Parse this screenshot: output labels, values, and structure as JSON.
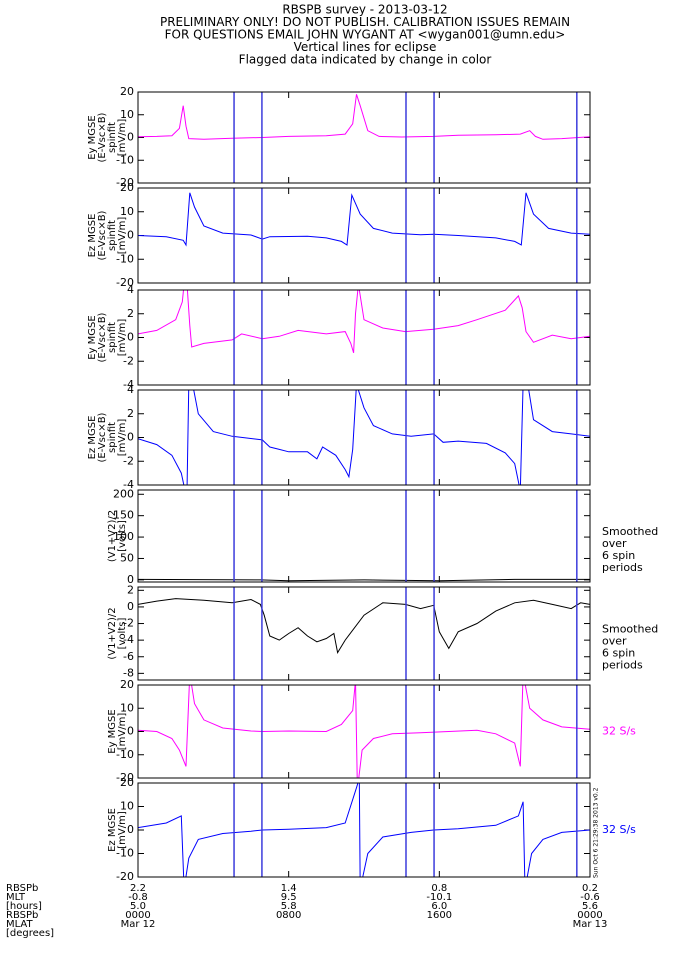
{
  "header": [
    "RBSPB survey - 2013-03-12",
    "PRELIMINARY ONLY! DO NOT PUBLISH. CALIBRATION ISSUES REMAIN",
    "FOR QUESTIONS EMAIL JOHN WYGANT AT <wygan001@umn.edu>",
    "Vertical lines for eclipse",
    "Flagged data indicated by change in color"
  ],
  "eclipse": {
    "x": [
      5.1,
      6.58,
      14.23,
      15.72,
      23.3
    ],
    "color": "#3c3cdc"
  },
  "x_axis": {
    "xlim": [
      0,
      24
    ],
    "row_labels": [
      "RBSPb",
      "MLT",
      "[hours]",
      "RBSPb",
      "MLAT",
      "[degrees]"
    ],
    "ticks": [
      {
        "value": 0,
        "rows": [
          "2.2",
          "-0.8",
          "5.0",
          "0000",
          "Mar 12"
        ]
      },
      {
        "value": 8,
        "rows": [
          "1.4",
          "9.5",
          "5.8",
          "0800"
        ]
      },
      {
        "value": 16,
        "rows": [
          "0.8",
          "-10.1",
          "6.0",
          "1600"
        ]
      },
      {
        "value": 24,
        "rows": [
          "0.2",
          "-0.6",
          "5.6",
          "0000",
          "Mar 13"
        ]
      }
    ]
  },
  "footnote": "Sun Oct  6 21:29:38 2013 v0.2",
  "chart_data": [
    {
      "type": "line",
      "ylabel": [
        "Ey MGSE",
        "(E-Vsc×B)",
        "spinfit",
        "[mV/m]"
      ],
      "ylim": [
        -20,
        20
      ],
      "yticks": [
        -20,
        -10,
        0,
        10,
        20
      ],
      "x": [
        0,
        1,
        1.8,
        2.2,
        2.4,
        2.55,
        2.7,
        3.5,
        5,
        6.6,
        8,
        10,
        11,
        11.4,
        11.6,
        11.8,
        12.2,
        12.8,
        14,
        15.7,
        17,
        19,
        20.3,
        20.8,
        21.1,
        21.5,
        22.5,
        24
      ],
      "series": [
        {
          "color": "#ff00ff",
          "values": [
            0.3,
            0.5,
            0.8,
            4,
            14,
            5,
            -0.5,
            -0.8,
            -0.3,
            0,
            0.5,
            0.8,
            1.5,
            6,
            19,
            14,
            3,
            0.5,
            0.2,
            0.5,
            1,
            1.2,
            1.5,
            3,
            0.5,
            -0.8,
            -0.5,
            0.3
          ]
        }
      ]
    },
    {
      "type": "line",
      "ylabel": [
        "Ez MGSE",
        "(E-Vsc×B)",
        "spinfit",
        "[mV/m]"
      ],
      "ylim": [
        -20,
        20
      ],
      "yticks": [
        -20,
        -10,
        0,
        10,
        20
      ],
      "x": [
        0,
        1.5,
        2.4,
        2.55,
        2.75,
        3,
        3.5,
        4.5,
        6,
        6.6,
        7,
        9,
        10,
        10.8,
        11.1,
        11.35,
        11.8,
        12.5,
        13.5,
        15,
        15.7,
        17,
        19,
        20,
        20.35,
        20.6,
        21,
        21.8,
        23,
        24
      ],
      "series": [
        {
          "color": "#0000ff",
          "values": [
            0,
            -0.5,
            -2,
            -4,
            18,
            12,
            4,
            1,
            0.2,
            -1.5,
            -0.5,
            -0.3,
            -1,
            -2.5,
            -4,
            17,
            9,
            3,
            1,
            0.3,
            0.5,
            0,
            -1,
            -2.5,
            -4,
            18,
            9,
            3,
            1,
            0.5
          ]
        }
      ]
    },
    {
      "type": "line",
      "ylabel": [
        "Ey MGSE",
        "(E-Vsc×B)",
        "spinfit",
        "[mV/m]"
      ],
      "ylim": [
        -4,
        4
      ],
      "yticks": [
        -4,
        -2,
        0,
        2,
        4
      ],
      "x": [
        0,
        1,
        2,
        2.35,
        2.45,
        2.6,
        2.75,
        2.85,
        3.5,
        5,
        5.5,
        6.6,
        7.5,
        8.5,
        10,
        11,
        11.3,
        11.45,
        11.55,
        11.7,
        12,
        13,
        14.2,
        15.7,
        17,
        18,
        19.5,
        20.2,
        20.4,
        20.6,
        21,
        22,
        23,
        24
      ],
      "series": [
        {
          "color": "#ff00ff",
          "values": [
            0.3,
            0.6,
            1.5,
            3,
            4.5,
            4.5,
            1,
            -0.8,
            -0.5,
            -0.2,
            0.3,
            -0.1,
            0.1,
            0.6,
            0.3,
            0.5,
            -0.5,
            -1.3,
            2,
            4.5,
            1.5,
            0.8,
            0.5,
            0.7,
            1,
            1.5,
            2.3,
            3.5,
            2.5,
            0.5,
            -0.4,
            0.2,
            -0.1,
            0.1
          ]
        }
      ]
    },
    {
      "type": "line",
      "ylabel": [
        "Ez MGSE",
        "(E-Vsc×B)",
        "spinfit",
        "[mV/m]"
      ],
      "ylim": [
        -4,
        4
      ],
      "yticks": [
        -4,
        -2,
        0,
        2,
        4
      ],
      "x": [
        0,
        1,
        1.8,
        2.3,
        2.5,
        2.6,
        2.7,
        2.9,
        3.2,
        4,
        5,
        6.6,
        7,
        7.5,
        8,
        9,
        9.5,
        9.8,
        10.5,
        11,
        11.2,
        11.4,
        11.6,
        12,
        12.5,
        13.5,
        14.5,
        15.7,
        16.2,
        17,
        18.5,
        19.5,
        20,
        20.3,
        20.45,
        20.7,
        21,
        22,
        23,
        24
      ],
      "series": [
        {
          "color": "#0000ff",
          "values": [
            -0.1,
            -0.6,
            -1.5,
            -3,
            -4.5,
            -4.5,
            4.5,
            4.5,
            2,
            0.5,
            0.1,
            -0.2,
            -0.8,
            -1,
            -1.2,
            -1.2,
            -1.8,
            -0.8,
            -1.5,
            -2.7,
            -3.3,
            -1,
            4.5,
            2.5,
            1,
            0.3,
            0.1,
            0.3,
            -0.4,
            -0.3,
            -0.5,
            -1.3,
            -2.2,
            -4.5,
            4.5,
            4.5,
            1.5,
            0.5,
            0.3,
            0.1
          ]
        }
      ]
    },
    {
      "type": "line",
      "ylabel": [
        "(V1+V2)/2",
        "[volts]"
      ],
      "ylim": [
        -5,
        210
      ],
      "yticks": [
        0,
        50,
        100,
        150,
        200
      ],
      "annotation": [
        "Smoothed",
        "over",
        "6 spin",
        "periods"
      ],
      "annotation_color": "#000000",
      "x": [
        0,
        6.5,
        8,
        12,
        16,
        20,
        24
      ],
      "series": [
        {
          "color": "#000000",
          "values": [
            1,
            0,
            -2,
            0,
            -2,
            1,
            1
          ]
        }
      ]
    },
    {
      "type": "line",
      "ylabel": [
        "(V1+V2)/2",
        "[volts]"
      ],
      "ylim": [
        -8.8,
        2.4
      ],
      "yticks": [
        -8,
        -6,
        -4,
        -2,
        0,
        2
      ],
      "annotation": [
        "Smoothed",
        "over",
        "6 spin",
        "periods"
      ],
      "annotation_color": "#000000",
      "x": [
        0,
        1,
        2,
        3.5,
        5,
        6,
        6.5,
        6.7,
        7,
        7.5,
        8,
        8.5,
        9,
        9.5,
        10,
        10.4,
        10.6,
        11,
        12,
        13,
        14.2,
        15,
        15.7,
        16,
        16.5,
        17,
        18,
        19,
        20,
        21,
        22,
        23,
        23.5,
        24
      ],
      "series": [
        {
          "color": "#000000",
          "values": [
            0.3,
            0.7,
            1,
            0.8,
            0.5,
            0.9,
            0.3,
            -1,
            -3.5,
            -4,
            -3.2,
            -2.5,
            -3.5,
            -4.2,
            -3.8,
            -3.2,
            -5.5,
            -4,
            -1,
            0.5,
            0.3,
            -0.2,
            0.2,
            -3,
            -5,
            -3,
            -2,
            -0.5,
            0.5,
            0.8,
            0.3,
            -0.2,
            0.5,
            0.3
          ]
        }
      ]
    },
    {
      "type": "line",
      "ylabel": [
        "Ey MGSE",
        "[mV/m]"
      ],
      "ylim": [
        -20,
        20
      ],
      "yticks": [
        -20,
        -10,
        0,
        10,
        20
      ],
      "annotation": [
        "32 S/s"
      ],
      "annotation_color": "#ff00ff",
      "x": [
        0,
        1,
        1.8,
        2.2,
        2.55,
        2.75,
        3,
        3.5,
        4.5,
        6,
        6.6,
        8,
        10,
        10.8,
        11.4,
        11.55,
        11.65,
        11.9,
        12.5,
        13.5,
        15,
        16.5,
        18,
        19,
        20,
        20.3,
        20.45,
        20.8,
        21.5,
        22.5,
        24
      ],
      "series": [
        {
          "color": "#ff00ff",
          "values": [
            0.5,
            0,
            -3,
            -8,
            -15,
            25,
            12,
            5,
            1.5,
            0.2,
            0,
            0.2,
            0,
            3,
            9,
            22,
            -25,
            -8,
            -3,
            -1,
            -0.5,
            0,
            0.5,
            -1,
            -5,
            -15,
            25,
            10,
            5,
            2,
            1
          ]
        }
      ]
    },
    {
      "type": "line",
      "ylabel": [
        "Ez MGSE",
        "[mV/m]"
      ],
      "ylim": [
        -20,
        20
      ],
      "yticks": [
        -20,
        -10,
        0,
        10,
        20
      ],
      "annotation": [
        "32 S/s"
      ],
      "annotation_color": "#0000ff",
      "x": [
        0,
        1.5,
        2.3,
        2.45,
        2.7,
        3.2,
        4.5,
        6,
        6.6,
        8,
        10,
        11,
        11.6,
        11.75,
        11.8,
        12.2,
        13,
        14.5,
        15.7,
        17,
        19,
        20.2,
        20.45,
        20.55,
        20.9,
        21.5,
        22.5,
        24
      ],
      "series": [
        {
          "color": "#0000ff",
          "values": [
            1,
            3,
            6,
            -25,
            -12,
            -4,
            -1.5,
            -0.5,
            0,
            0.3,
            1,
            3,
            18,
            22,
            -25,
            -10,
            -3,
            -1,
            0,
            0.5,
            2,
            6,
            12,
            -25,
            -10,
            -4,
            -1,
            0
          ]
        }
      ]
    }
  ]
}
